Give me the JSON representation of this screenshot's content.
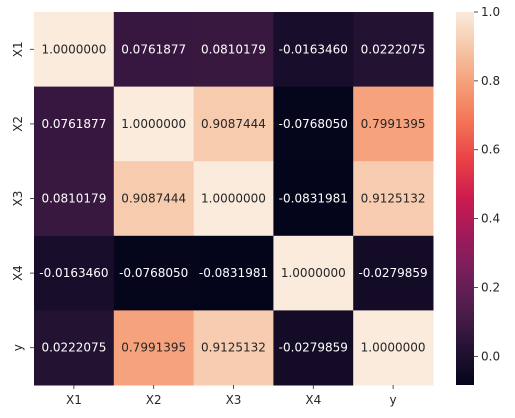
{
  "chart_data": {
    "type": "heatmap",
    "x_categories": [
      "X1",
      "X2",
      "X3",
      "X4",
      "y"
    ],
    "y_categories": [
      "X1",
      "X2",
      "X3",
      "X4",
      "y"
    ],
    "values": [
      [
        1.0,
        0.0761877,
        0.0810179,
        -0.016346,
        0.0222075
      ],
      [
        0.0761877,
        1.0,
        0.9087444,
        -0.076805,
        0.7991395
      ],
      [
        0.0810179,
        0.9087444,
        1.0,
        -0.0831981,
        0.9125132
      ],
      [
        -0.016346,
        -0.076805,
        -0.0831981,
        1.0,
        -0.0279859
      ],
      [
        0.0222075,
        0.7991395,
        0.9125132,
        -0.0279859,
        1.0
      ]
    ],
    "cell_labels": [
      [
        "1.0000000",
        "0.0761877",
        "0.0810179",
        "-0.0163460",
        "0.0222075"
      ],
      [
        "0.0761877",
        "1.0000000",
        "0.9087444",
        "-0.0768050",
        "0.7991395"
      ],
      [
        "0.0810179",
        "0.9087444",
        "1.0000000",
        "-0.0831981",
        "0.9125132"
      ],
      [
        "-0.0163460",
        "-0.0768050",
        "-0.0831981",
        "1.0000000",
        "-0.0279859"
      ],
      [
        "0.0222075",
        "0.7991395",
        "0.9125132",
        "-0.0279859",
        "1.0000000"
      ]
    ],
    "colormap": "rocket",
    "vmin": -0.0831981,
    "vmax": 1.0,
    "colorbar": {
      "ticks": [
        0.0,
        0.2,
        0.4,
        0.6,
        0.8,
        1.0
      ],
      "tick_labels": [
        "0.0",
        "0.2",
        "0.4",
        "0.6",
        "0.8",
        "1.0"
      ]
    },
    "title": "",
    "xlabel": "",
    "ylabel": "",
    "grid": false,
    "legend": "none"
  }
}
